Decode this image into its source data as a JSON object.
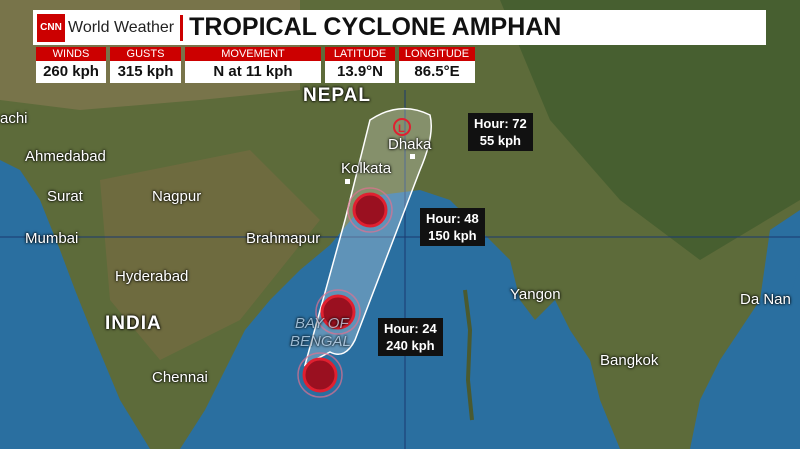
{
  "header": {
    "logo": "CNN",
    "brand": "World Weather",
    "title": "TROPICAL CYCLONE AMPHAN"
  },
  "stats": [
    {
      "label": "WINDS",
      "value": "260 kph"
    },
    {
      "label": "GUSTS",
      "value": "315 kph"
    },
    {
      "label": "MOVEMENT",
      "value": "N at 11 kph"
    },
    {
      "label": "LATITUDE",
      "value": "13.9°N"
    },
    {
      "label": "LONGITUDE",
      "value": "86.5°E"
    }
  ],
  "places": {
    "nepal": "NEPAL",
    "karachi": "achi",
    "ahmedabad": "Ahmedabad",
    "surat": "Surat",
    "nagpur": "Nagpur",
    "mumbai": "Mumbai",
    "brahmapur": "Brahmapur",
    "hyderabad": "Hyderabad",
    "india": "INDIA",
    "chennai": "Chennai",
    "kolkata": "Kolkata",
    "dhaka": "Dhaka",
    "yangon": "Yangon",
    "bangkok": "Bangkok",
    "danang": "Da Nan",
    "bay": "BAY OF",
    "bengal": "BENGAL"
  },
  "forecast": [
    {
      "hour": "Hour: 72",
      "wind": "55 kph"
    },
    {
      "hour": "Hour: 48",
      "wind": "150 kph"
    },
    {
      "hour": "Hour: 24",
      "wind": "240 kph"
    }
  ],
  "colors": {
    "brand": "#cc0000",
    "ocean": "#2a6fa0",
    "land": "#5d6b3a"
  }
}
